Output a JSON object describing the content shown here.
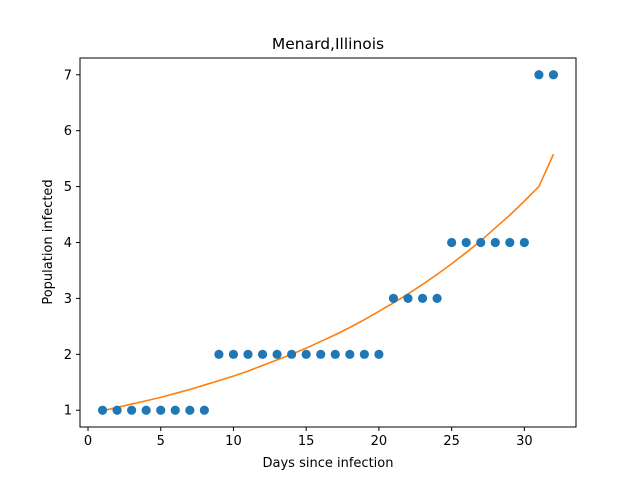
{
  "chart_data": {
    "type": "scatter",
    "title": "Menard,Illinois",
    "xlabel": "Days since infection",
    "ylabel": "Population infected",
    "xlim": [
      -0.55,
      33.55
    ],
    "ylim": [
      0.7,
      7.3
    ],
    "xticks": [
      0,
      5,
      10,
      15,
      20,
      25,
      30
    ],
    "yticks": [
      1,
      2,
      3,
      4,
      5,
      6,
      7
    ],
    "grid": false,
    "series": [
      {
        "kind": "scatter",
        "color": "#1f77b4",
        "x": [
          1,
          2,
          3,
          4,
          5,
          6,
          7,
          8,
          9,
          10,
          11,
          12,
          13,
          14,
          15,
          16,
          17,
          18,
          19,
          20,
          21,
          22,
          23,
          24,
          25,
          26,
          27,
          28,
          29,
          30,
          31,
          32
        ],
        "y": [
          1,
          1,
          1,
          1,
          1,
          1,
          1,
          1,
          2,
          2,
          2,
          2,
          2,
          2,
          2,
          2,
          2,
          2,
          2,
          2,
          3,
          3,
          3,
          3,
          4,
          4,
          4,
          4,
          4,
          4,
          7,
          7
        ]
      },
      {
        "kind": "line",
        "color": "#ff7f0e",
        "x": [
          1,
          2,
          3,
          4,
          5,
          6,
          7,
          8,
          9,
          10,
          11,
          12,
          13,
          14,
          15,
          16,
          17,
          18,
          19,
          20,
          21,
          22,
          23,
          24,
          25,
          26,
          27,
          28,
          29,
          30,
          31,
          32
        ],
        "y": [
          0.99,
          1.05,
          1.11,
          1.17,
          1.23,
          1.3,
          1.37,
          1.45,
          1.53,
          1.61,
          1.7,
          1.8,
          1.9,
          2.0,
          2.11,
          2.23,
          2.35,
          2.48,
          2.62,
          2.77,
          2.92,
          3.08,
          3.25,
          3.43,
          3.62,
          3.82,
          4.03,
          4.26,
          4.49,
          4.74,
          5.0,
          5.58
        ]
      }
    ]
  }
}
